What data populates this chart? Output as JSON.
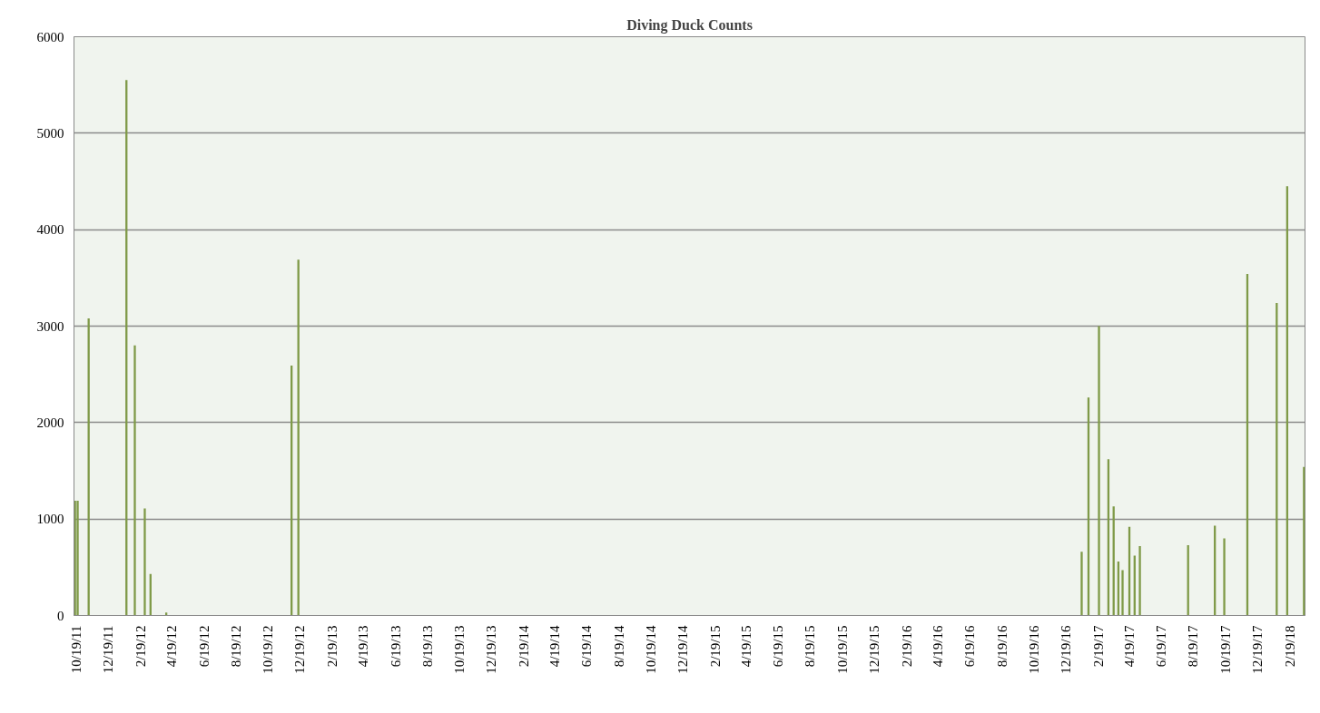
{
  "chart_data": {
    "type": "bar",
    "title": "Diving Duck Counts",
    "x": [
      "2011-10-17",
      "2011-10-22",
      "2011-11-12",
      "2012-01-23",
      "2012-02-08",
      "2012-02-27",
      "2012-03-09",
      "2012-04-08",
      "2012-12-03",
      "2012-12-16",
      "2017-01-18",
      "2017-01-31",
      "2017-02-20",
      "2017-03-10",
      "2017-03-20",
      "2017-03-29",
      "2017-04-06",
      "2017-04-19",
      "2017-04-29",
      "2017-05-09",
      "2017-08-09",
      "2017-09-29",
      "2017-10-17",
      "2017-11-30",
      "2018-01-25",
      "2018-02-14",
      "2018-03-18"
    ],
    "values": [
      1190,
      1190,
      3080,
      5550,
      2800,
      1110,
      430,
      30,
      2590,
      3690,
      660,
      2260,
      3000,
      1620,
      1130,
      560,
      470,
      920,
      620,
      720,
      730,
      930,
      800,
      3540,
      3240,
      4450,
      1540
    ],
    "color": "#7f9a48",
    "xlim": [
      "2011-10-15",
      "2018-03-20"
    ],
    "xticks": [
      {
        "value": "2011-10-19",
        "label": "10/19/11"
      },
      {
        "value": "2011-12-19",
        "label": "12/19/11"
      },
      {
        "value": "2012-02-19",
        "label": "2/19/12"
      },
      {
        "value": "2012-04-19",
        "label": "4/19/12"
      },
      {
        "value": "2012-06-19",
        "label": "6/19/12"
      },
      {
        "value": "2012-08-19",
        "label": "8/19/12"
      },
      {
        "value": "2012-10-19",
        "label": "10/19/12"
      },
      {
        "value": "2012-12-19",
        "label": "12/19/12"
      },
      {
        "value": "2013-02-19",
        "label": "2/19/13"
      },
      {
        "value": "2013-04-19",
        "label": "4/19/13"
      },
      {
        "value": "2013-06-19",
        "label": "6/19/13"
      },
      {
        "value": "2013-08-19",
        "label": "8/19/13"
      },
      {
        "value": "2013-10-19",
        "label": "10/19/13"
      },
      {
        "value": "2013-12-19",
        "label": "12/19/13"
      },
      {
        "value": "2014-02-19",
        "label": "2/19/14"
      },
      {
        "value": "2014-04-19",
        "label": "4/19/14"
      },
      {
        "value": "2014-06-19",
        "label": "6/19/14"
      },
      {
        "value": "2014-08-19",
        "label": "8/19/14"
      },
      {
        "value": "2014-10-19",
        "label": "10/19/14"
      },
      {
        "value": "2014-12-19",
        "label": "12/19/14"
      },
      {
        "value": "2015-02-19",
        "label": "2/19/15"
      },
      {
        "value": "2015-04-19",
        "label": "4/19/15"
      },
      {
        "value": "2015-06-19",
        "label": "6/19/15"
      },
      {
        "value": "2015-08-19",
        "label": "8/19/15"
      },
      {
        "value": "2015-10-19",
        "label": "10/19/15"
      },
      {
        "value": "2015-12-19",
        "label": "12/19/15"
      },
      {
        "value": "2016-02-19",
        "label": "2/19/16"
      },
      {
        "value": "2016-04-19",
        "label": "4/19/16"
      },
      {
        "value": "2016-06-19",
        "label": "6/19/16"
      },
      {
        "value": "2016-08-19",
        "label": "8/19/16"
      },
      {
        "value": "2016-10-19",
        "label": "10/19/16"
      },
      {
        "value": "2016-12-19",
        "label": "12/19/16"
      },
      {
        "value": "2017-02-19",
        "label": "2/19/17"
      },
      {
        "value": "2017-04-19",
        "label": "4/19/17"
      },
      {
        "value": "2017-06-19",
        "label": "6/19/17"
      },
      {
        "value": "2017-08-19",
        "label": "8/19/17"
      },
      {
        "value": "2017-10-19",
        "label": "10/19/17"
      },
      {
        "value": "2017-12-19",
        "label": "12/19/17"
      },
      {
        "value": "2018-02-19",
        "label": "2/19/18"
      }
    ],
    "ylim": [
      0,
      6000
    ],
    "yticks": [
      0,
      1000,
      2000,
      3000,
      4000,
      5000,
      6000
    ],
    "grid": "y"
  }
}
